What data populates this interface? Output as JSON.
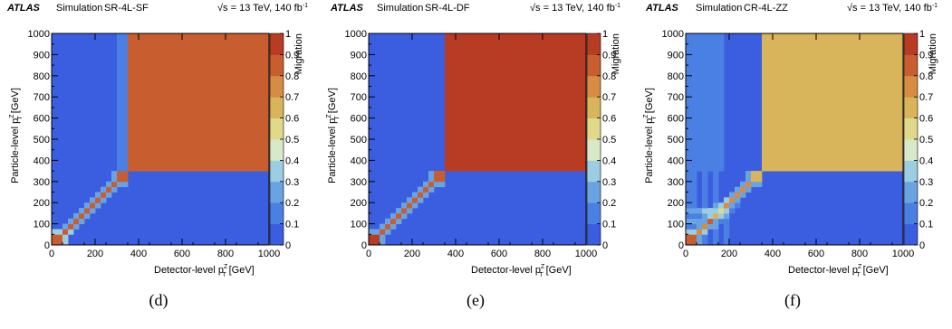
{
  "common": {
    "atlas": "ATLAS",
    "simulation": "Simulation",
    "energy": "√s = 13 TeV, 140 fb",
    "energy_sup": "-1",
    "xlabel": "Detector-level p",
    "ylabel": "Particle-level p",
    "label_sup": "Z",
    "label_sub": "T",
    "unit": "[GeV]",
    "colorbar_label": "Migration",
    "colorbar_ticks": [
      "0",
      "0.1",
      "0.2",
      "0.3",
      "0.4",
      "0.5",
      "0.6",
      "0.7",
      "0.8",
      "0.9",
      "1"
    ],
    "x_ticks": [
      "0",
      "200",
      "400",
      "600",
      "800",
      "1000"
    ],
    "y_ticks": [
      "0",
      "100",
      "200",
      "300",
      "400",
      "500",
      "600",
      "700",
      "800",
      "900",
      "1000"
    ],
    "palette": [
      "#3b5ee0",
      "#4a80e4",
      "#6aa3e2",
      "#9ccde0",
      "#d8e8c8",
      "#e0d88a",
      "#d8b45a",
      "#d68c42",
      "#c85e30",
      "#b83c24"
    ]
  },
  "chart_data": [
    {
      "type": "heatmap",
      "region": "SR-4L-SF",
      "caption": "(d)",
      "xlim": [
        0,
        1000
      ],
      "ylim": [
        0,
        1000
      ],
      "bin_edges": [
        0,
        50,
        75,
        100,
        125,
        150,
        175,
        200,
        225,
        250,
        275,
        300,
        350,
        1000
      ],
      "cells": [
        [
          0,
          0,
          0.82
        ],
        [
          1,
          0,
          0.3
        ],
        [
          0,
          1,
          0.3
        ],
        [
          1,
          1,
          0.82
        ],
        [
          2,
          1,
          0.3
        ],
        [
          1,
          2,
          0.2
        ],
        [
          2,
          2,
          0.84
        ],
        [
          3,
          2,
          0.2
        ],
        [
          2,
          3,
          0.2
        ],
        [
          3,
          3,
          0.85
        ],
        [
          4,
          3,
          0.2
        ],
        [
          3,
          4,
          0.2
        ],
        [
          4,
          4,
          0.85
        ],
        [
          5,
          4,
          0.2
        ],
        [
          4,
          5,
          0.2
        ],
        [
          5,
          5,
          0.85
        ],
        [
          6,
          5,
          0.2
        ],
        [
          5,
          6,
          0.2
        ],
        [
          6,
          6,
          0.86
        ],
        [
          7,
          6,
          0.2
        ],
        [
          6,
          7,
          0.2
        ],
        [
          7,
          7,
          0.85
        ],
        [
          8,
          7,
          0.2
        ],
        [
          7,
          8,
          0.2
        ],
        [
          8,
          8,
          0.85
        ],
        [
          9,
          8,
          0.2
        ],
        [
          8,
          9,
          0.2
        ],
        [
          9,
          9,
          0.85
        ],
        [
          10,
          9,
          0.2
        ],
        [
          9,
          10,
          0.2
        ],
        [
          10,
          10,
          0.84
        ],
        [
          11,
          10,
          0.2
        ],
        [
          10,
          11,
          0.2
        ],
        [
          11,
          11,
          0.84
        ],
        [
          11,
          12,
          0.12
        ],
        [
          12,
          12,
          0.84
        ]
      ]
    },
    {
      "type": "heatmap",
      "region": "SR-4L-DF",
      "caption": "(e)",
      "xlim": [
        0,
        1000
      ],
      "ylim": [
        0,
        1000
      ],
      "bin_edges": [
        0,
        50,
        75,
        100,
        125,
        150,
        175,
        200,
        225,
        250,
        275,
        300,
        350,
        1000
      ],
      "cells": [
        [
          0,
          0,
          0.92
        ],
        [
          1,
          0,
          0.2
        ],
        [
          0,
          1,
          0.2
        ],
        [
          1,
          1,
          0.88
        ],
        [
          2,
          1,
          0.2
        ],
        [
          1,
          2,
          0.2
        ],
        [
          2,
          2,
          0.86
        ],
        [
          3,
          2,
          0.2
        ],
        [
          2,
          3,
          0.2
        ],
        [
          3,
          3,
          0.85
        ],
        [
          4,
          3,
          0.2
        ],
        [
          3,
          4,
          0.2
        ],
        [
          4,
          4,
          0.85
        ],
        [
          5,
          4,
          0.2
        ],
        [
          4,
          5,
          0.2
        ],
        [
          5,
          5,
          0.85
        ],
        [
          6,
          5,
          0.2
        ],
        [
          5,
          6,
          0.2
        ],
        [
          6,
          6,
          0.85
        ],
        [
          7,
          6,
          0.2
        ],
        [
          6,
          7,
          0.2
        ],
        [
          7,
          7,
          0.85
        ],
        [
          8,
          7,
          0.2
        ],
        [
          7,
          8,
          0.2
        ],
        [
          8,
          8,
          0.85
        ],
        [
          9,
          8,
          0.2
        ],
        [
          8,
          9,
          0.2
        ],
        [
          9,
          9,
          0.85
        ],
        [
          10,
          9,
          0.2
        ],
        [
          9,
          10,
          0.2
        ],
        [
          10,
          10,
          0.85
        ],
        [
          11,
          10,
          0.2
        ],
        [
          10,
          11,
          0.2
        ],
        [
          11,
          11,
          0.84
        ],
        [
          12,
          12,
          0.92
        ]
      ]
    },
    {
      "type": "heatmap",
      "region": "CR-4L-ZZ",
      "caption": "(f)",
      "xlim": [
        0,
        1000
      ],
      "ylim": [
        0,
        1000
      ],
      "bin_edges": [
        0,
        50,
        75,
        100,
        125,
        150,
        175,
        200,
        225,
        250,
        275,
        300,
        350,
        1000
      ],
      "cells": [
        [
          0,
          0,
          0.82
        ],
        [
          1,
          0,
          0.2
        ],
        [
          2,
          0,
          0.12
        ],
        [
          4,
          0,
          0.12
        ],
        [
          6,
          0,
          0.12
        ],
        [
          0,
          1,
          0.3
        ],
        [
          1,
          1,
          0.72
        ],
        [
          2,
          1,
          0.3
        ],
        [
          4,
          1,
          0.12
        ],
        [
          6,
          1,
          0.12
        ],
        [
          0,
          2,
          0.12
        ],
        [
          1,
          2,
          0.2
        ],
        [
          2,
          2,
          0.75
        ],
        [
          3,
          2,
          0.2
        ],
        [
          4,
          2,
          0.2
        ],
        [
          6,
          2,
          0.12
        ],
        [
          0,
          3,
          0.25
        ],
        [
          1,
          3,
          0.25
        ],
        [
          2,
          3,
          0.25
        ],
        [
          3,
          3,
          0.8
        ],
        [
          4,
          3,
          0.25
        ],
        [
          5,
          3,
          0.12
        ],
        [
          6,
          3,
          0.12
        ],
        [
          0,
          4,
          0.12
        ],
        [
          1,
          4,
          0.12
        ],
        [
          2,
          4,
          0.2
        ],
        [
          3,
          4,
          0.3
        ],
        [
          4,
          4,
          0.6
        ],
        [
          5,
          4,
          0.3
        ],
        [
          6,
          4,
          0.2
        ],
        [
          0,
          5,
          0.25
        ],
        [
          1,
          5,
          0.25
        ],
        [
          2,
          5,
          0.3
        ],
        [
          3,
          5,
          0.3
        ],
        [
          4,
          5,
          0.3
        ],
        [
          5,
          5,
          0.55
        ],
        [
          6,
          5,
          0.3
        ],
        [
          7,
          5,
          0.12
        ],
        [
          0,
          6,
          0.12
        ],
        [
          2,
          6,
          0.12
        ],
        [
          4,
          6,
          0.25
        ],
        [
          5,
          6,
          0.3
        ],
        [
          6,
          6,
          0.7
        ],
        [
          7,
          6,
          0.25
        ],
        [
          8,
          6,
          0.12
        ],
        [
          0,
          7,
          0.12
        ],
        [
          2,
          7,
          0.12
        ],
        [
          4,
          7,
          0.12
        ],
        [
          6,
          7,
          0.3
        ],
        [
          7,
          7,
          0.75
        ],
        [
          8,
          7,
          0.25
        ],
        [
          0,
          8,
          0.12
        ],
        [
          2,
          8,
          0.12
        ],
        [
          4,
          8,
          0.12
        ],
        [
          7,
          8,
          0.2
        ],
        [
          8,
          8,
          0.75
        ],
        [
          9,
          8,
          0.2
        ],
        [
          0,
          9,
          0.12
        ],
        [
          2,
          9,
          0.12
        ],
        [
          4,
          9,
          0.12
        ],
        [
          8,
          9,
          0.2
        ],
        [
          9,
          9,
          0.72
        ],
        [
          10,
          9,
          0.2
        ],
        [
          0,
          10,
          0.12
        ],
        [
          2,
          10,
          0.12
        ],
        [
          4,
          10,
          0.12
        ],
        [
          9,
          10,
          0.2
        ],
        [
          10,
          10,
          0.72
        ],
        [
          11,
          10,
          0.2
        ],
        [
          0,
          11,
          0.12
        ],
        [
          2,
          11,
          0.12
        ],
        [
          4,
          11,
          0.12
        ],
        [
          10,
          11,
          0.2
        ],
        [
          11,
          11,
          0.65
        ],
        [
          0,
          12,
          0.12
        ],
        [
          1,
          12,
          0.12
        ],
        [
          2,
          12,
          0.12
        ],
        [
          3,
          12,
          0.12
        ],
        [
          4,
          12,
          0.12
        ],
        [
          5,
          12,
          0.12
        ],
        [
          12,
          12,
          0.68
        ]
      ]
    }
  ]
}
